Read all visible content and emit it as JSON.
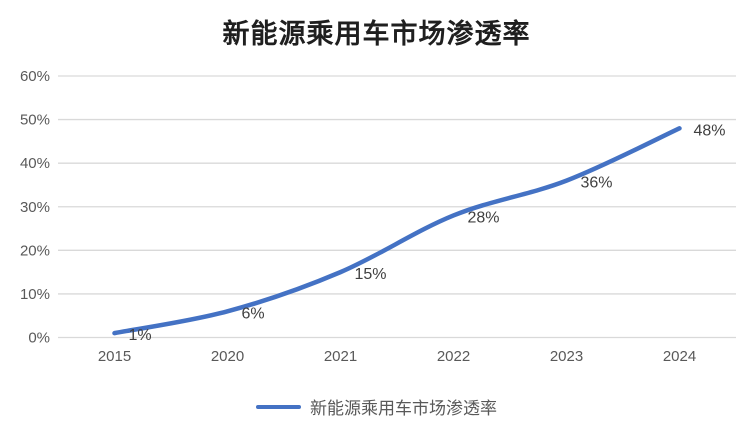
{
  "title": "新能源乘用车市场渗透率",
  "legend": {
    "label": "新能源乘用车市场渗透率"
  },
  "colors": {
    "line": "#4472C4",
    "grid": "#D9D9D9",
    "axis_text": "#595959",
    "data_label_text": "#404040",
    "title_text": "#1f1f1f"
  },
  "chart_data": {
    "type": "line",
    "title": "新能源乘用车市场渗透率",
    "categories": [
      "2015",
      "2020",
      "2021",
      "2022",
      "2023",
      "2024"
    ],
    "values": [
      1,
      6,
      15,
      28,
      36,
      48
    ],
    "data_labels": [
      "1%",
      "6%",
      "15%",
      "28%",
      "36%",
      "48%"
    ],
    "series_name": "新能源乘用车市场渗透率",
    "xlabel": "",
    "ylabel": "",
    "ylim": [
      0,
      60
    ],
    "ytick_step": 10,
    "ytick_labels": [
      "0%",
      "10%",
      "20%",
      "30%",
      "40%",
      "50%",
      "60%"
    ],
    "grid": true,
    "smooth_line": true,
    "legend_position": "bottom"
  }
}
